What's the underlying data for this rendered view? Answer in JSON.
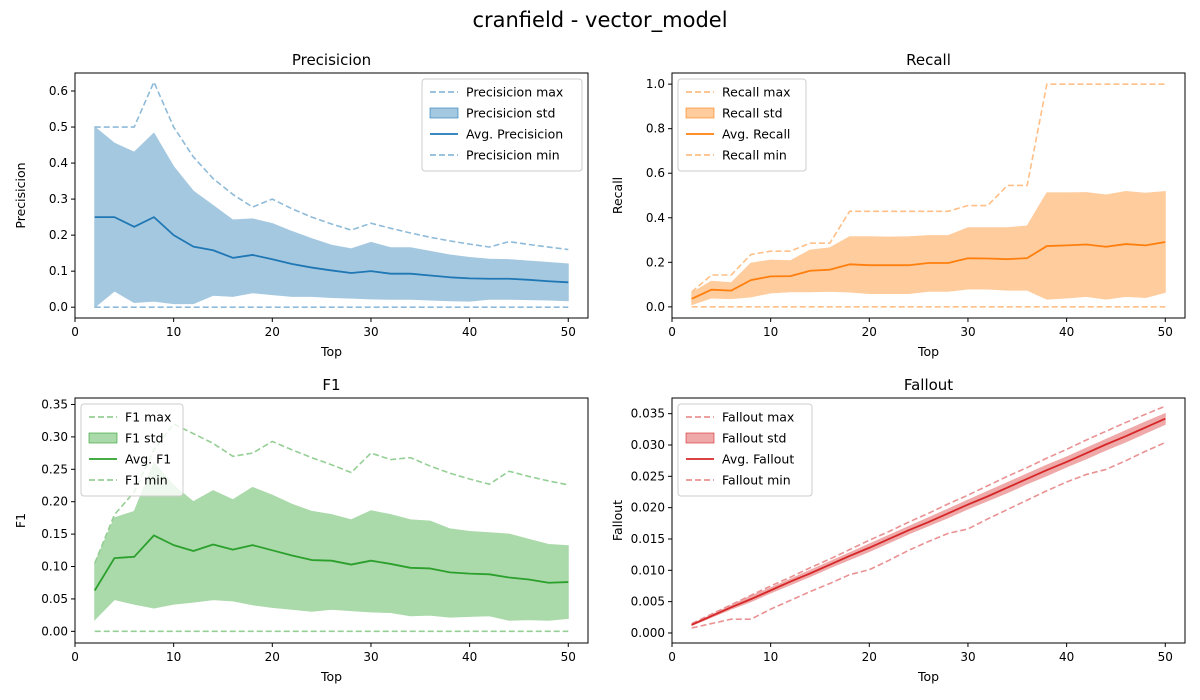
{
  "figure": {
    "suptitle": "cranfield - vector_model"
  },
  "colors": {
    "precision": "#1f77b4",
    "recall": "#ff7f0e",
    "f1": "#2ca02c",
    "fallout": "#d62728"
  },
  "chart_data": [
    {
      "type": "line",
      "title": "Precisicion",
      "xlabel": "Top",
      "ylabel": "Precisicion",
      "xlim": [
        0,
        52
      ],
      "ylim": [
        -0.03,
        0.65
      ],
      "xticks": [
        0,
        10,
        20,
        30,
        40,
        50
      ],
      "xtick_labels": [
        "0",
        "10",
        "20",
        "30",
        "40",
        "50"
      ],
      "yticks": [
        0.0,
        0.1,
        0.2,
        0.3,
        0.4,
        0.5,
        0.6
      ],
      "ytick_labels": [
        "0.0",
        "0.1",
        "0.2",
        "0.3",
        "0.4",
        "0.5",
        "0.6"
      ],
      "legend_position": "top-right",
      "legend": [
        "Precisicion max",
        "Precisicion std",
        "Avg. Precisicion",
        "Precisicion min"
      ],
      "color": "#1f77b4",
      "x": [
        2,
        4,
        6,
        8,
        10,
        12,
        14,
        16,
        18,
        20,
        22,
        24,
        26,
        28,
        30,
        32,
        34,
        36,
        38,
        40,
        42,
        44,
        46,
        48,
        50
      ],
      "max": [
        0.5,
        0.5,
        0.5,
        0.625,
        0.5,
        0.417,
        0.357,
        0.313,
        0.278,
        0.3,
        0.273,
        0.25,
        0.231,
        0.214,
        0.233,
        0.219,
        0.206,
        0.194,
        0.184,
        0.175,
        0.167,
        0.182,
        0.174,
        0.167,
        0.16
      ],
      "std_upper": [
        0.5,
        0.455,
        0.43,
        0.483,
        0.39,
        0.322,
        0.282,
        0.242,
        0.245,
        0.232,
        0.21,
        0.19,
        0.172,
        0.162,
        0.18,
        0.165,
        0.165,
        0.155,
        0.145,
        0.138,
        0.133,
        0.132,
        0.128,
        0.124,
        0.12
      ],
      "avg": [
        0.25,
        0.25,
        0.223,
        0.25,
        0.2,
        0.168,
        0.158,
        0.137,
        0.145,
        0.133,
        0.12,
        0.11,
        0.102,
        0.095,
        0.1,
        0.093,
        0.093,
        0.088,
        0.083,
        0.08,
        0.079,
        0.079,
        0.076,
        0.072,
        0.069
      ],
      "std_lower": [
        0.0,
        0.045,
        0.013,
        0.017,
        0.01,
        0.01,
        0.033,
        0.03,
        0.04,
        0.035,
        0.03,
        0.03,
        0.027,
        0.025,
        0.023,
        0.022,
        0.022,
        0.02,
        0.018,
        0.017,
        0.022,
        0.022,
        0.021,
        0.02,
        0.018
      ],
      "min": [
        0.0,
        0.0,
        0.0,
        0.0,
        0.0,
        0.0,
        0.0,
        0.0,
        0.0,
        0.0,
        0.0,
        0.0,
        0.0,
        0.0,
        0.0,
        0.0,
        0.0,
        0.0,
        0.0,
        0.0,
        0.0,
        0.0,
        0.0,
        0.0,
        0.0
      ]
    },
    {
      "type": "line",
      "title": "Recall",
      "xlabel": "Top",
      "ylabel": "Recall",
      "xlim": [
        0,
        52
      ],
      "ylim": [
        -0.05,
        1.05
      ],
      "xticks": [
        0,
        10,
        20,
        30,
        40,
        50
      ],
      "xtick_labels": [
        "0",
        "10",
        "20",
        "30",
        "40",
        "50"
      ],
      "yticks": [
        0.0,
        0.2,
        0.4,
        0.6,
        0.8,
        1.0
      ],
      "ytick_labels": [
        "0.0",
        "0.2",
        "0.4",
        "0.6",
        "0.8",
        "1.0"
      ],
      "legend_position": "top-left",
      "legend": [
        "Recall max",
        "Recall std",
        "Avg. Recall",
        "Recall min"
      ],
      "color": "#ff7f0e",
      "x": [
        2,
        4,
        6,
        8,
        10,
        12,
        14,
        16,
        18,
        20,
        22,
        24,
        26,
        28,
        30,
        32,
        34,
        36,
        38,
        40,
        42,
        44,
        46,
        48,
        50
      ],
      "max": [
        0.067,
        0.143,
        0.143,
        0.235,
        0.25,
        0.25,
        0.286,
        0.286,
        0.429,
        0.429,
        0.429,
        0.429,
        0.429,
        0.429,
        0.455,
        0.455,
        0.545,
        0.545,
        1.0,
        1.0,
        1.0,
        1.0,
        1.0,
        1.0,
        1.0
      ],
      "std_upper": [
        0.063,
        0.115,
        0.108,
        0.196,
        0.21,
        0.207,
        0.255,
        0.265,
        0.315,
        0.315,
        0.313,
        0.315,
        0.32,
        0.32,
        0.355,
        0.355,
        0.355,
        0.363,
        0.512,
        0.512,
        0.513,
        0.502,
        0.518,
        0.51,
        0.518
      ],
      "avg": [
        0.036,
        0.077,
        0.073,
        0.12,
        0.137,
        0.138,
        0.162,
        0.167,
        0.191,
        0.187,
        0.187,
        0.187,
        0.197,
        0.197,
        0.218,
        0.217,
        0.214,
        0.219,
        0.273,
        0.276,
        0.28,
        0.27,
        0.282,
        0.276,
        0.291
      ],
      "std_lower": [
        0.01,
        0.04,
        0.037,
        0.045,
        0.063,
        0.068,
        0.068,
        0.07,
        0.067,
        0.06,
        0.06,
        0.06,
        0.07,
        0.07,
        0.08,
        0.08,
        0.075,
        0.075,
        0.035,
        0.04,
        0.047,
        0.035,
        0.047,
        0.042,
        0.065
      ],
      "min": [
        0.0,
        0.0,
        0.0,
        0.0,
        0.0,
        0.0,
        0.0,
        0.0,
        0.0,
        0.0,
        0.0,
        0.0,
        0.0,
        0.0,
        0.0,
        0.0,
        0.0,
        0.0,
        0.0,
        0.0,
        0.0,
        0.0,
        0.0,
        0.0,
        0.0
      ]
    },
    {
      "type": "line",
      "title": "F1",
      "xlabel": "Top",
      "ylabel": "F1",
      "xlim": [
        0,
        52
      ],
      "ylim": [
        -0.018,
        0.36
      ],
      "xticks": [
        0,
        10,
        20,
        30,
        40,
        50
      ],
      "xtick_labels": [
        "0",
        "10",
        "20",
        "30",
        "40",
        "50"
      ],
      "yticks": [
        0.0,
        0.05,
        0.1,
        0.15,
        0.2,
        0.25,
        0.3,
        0.35
      ],
      "ytick_labels": [
        "0.00",
        "0.05",
        "0.10",
        "0.15",
        "0.20",
        "0.25",
        "0.30",
        "0.35"
      ],
      "legend_position": "top-left",
      "legend": [
        "F1 max",
        "F1 std",
        "Avg. F1",
        "F1 min"
      ],
      "color": "#2ca02c",
      "x": [
        2,
        4,
        6,
        8,
        10,
        12,
        14,
        16,
        18,
        20,
        22,
        24,
        26,
        28,
        30,
        32,
        34,
        36,
        38,
        40,
        42,
        44,
        46,
        48,
        50
      ],
      "max": [
        0.105,
        0.18,
        0.215,
        0.28,
        0.32,
        0.305,
        0.29,
        0.27,
        0.275,
        0.293,
        0.28,
        0.268,
        0.257,
        0.245,
        0.275,
        0.265,
        0.268,
        0.255,
        0.244,
        0.235,
        0.227,
        0.247,
        0.239,
        0.232,
        0.226
      ],
      "std_upper": [
        0.105,
        0.175,
        0.185,
        0.26,
        0.225,
        0.2,
        0.217,
        0.203,
        0.222,
        0.21,
        0.196,
        0.185,
        0.18,
        0.172,
        0.186,
        0.18,
        0.172,
        0.17,
        0.158,
        0.154,
        0.152,
        0.15,
        0.142,
        0.134,
        0.132
      ],
      "avg": [
        0.063,
        0.113,
        0.115,
        0.148,
        0.133,
        0.124,
        0.134,
        0.126,
        0.133,
        0.125,
        0.117,
        0.11,
        0.109,
        0.103,
        0.109,
        0.104,
        0.098,
        0.097,
        0.091,
        0.089,
        0.088,
        0.083,
        0.08,
        0.075,
        0.076
      ],
      "std_lower": [
        0.018,
        0.049,
        0.042,
        0.036,
        0.042,
        0.045,
        0.049,
        0.047,
        0.041,
        0.037,
        0.034,
        0.031,
        0.034,
        0.032,
        0.03,
        0.029,
        0.024,
        0.025,
        0.022,
        0.023,
        0.024,
        0.017,
        0.018,
        0.017,
        0.02
      ],
      "min": [
        0.0,
        0.0,
        0.0,
        0.0,
        0.0,
        0.0,
        0.0,
        0.0,
        0.0,
        0.0,
        0.0,
        0.0,
        0.0,
        0.0,
        0.0,
        0.0,
        0.0,
        0.0,
        0.0,
        0.0,
        0.0,
        0.0,
        0.0,
        0.0,
        0.0
      ]
    },
    {
      "type": "line",
      "title": "Fallout",
      "xlabel": "Top",
      "ylabel": "Fallout",
      "xlim": [
        0,
        52
      ],
      "ylim": [
        -0.0016,
        0.0375
      ],
      "xticks": [
        0,
        10,
        20,
        30,
        40,
        50
      ],
      "xtick_labels": [
        "0",
        "10",
        "20",
        "30",
        "40",
        "50"
      ],
      "yticks": [
        0.0,
        0.005,
        0.01,
        0.015,
        0.02,
        0.025,
        0.03,
        0.035
      ],
      "ytick_labels": [
        "0.000",
        "0.005",
        "0.010",
        "0.015",
        "0.020",
        "0.025",
        "0.030",
        "0.035"
      ],
      "legend_position": "top-left",
      "legend": [
        "Fallout max",
        "Fallout std",
        "Avg. Fallout",
        "Fallout min"
      ],
      "color": "#d62728",
      "x": [
        2,
        4,
        6,
        8,
        10,
        12,
        14,
        16,
        18,
        20,
        22,
        24,
        26,
        28,
        30,
        32,
        34,
        36,
        38,
        40,
        42,
        44,
        46,
        48,
        50
      ],
      "max": [
        0.0015,
        0.003,
        0.0045,
        0.006,
        0.0075,
        0.0089,
        0.0104,
        0.0118,
        0.0133,
        0.0148,
        0.0162,
        0.0177,
        0.0191,
        0.0206,
        0.022,
        0.0235,
        0.025,
        0.0264,
        0.0279,
        0.0293,
        0.0308,
        0.0322,
        0.0336,
        0.0349,
        0.0362
      ],
      "std_upper": [
        0.0014,
        0.0029,
        0.0044,
        0.0059,
        0.0072,
        0.0086,
        0.01,
        0.0114,
        0.0128,
        0.0142,
        0.0156,
        0.017,
        0.0184,
        0.0198,
        0.0212,
        0.0226,
        0.024,
        0.0254,
        0.0268,
        0.0281,
        0.0295,
        0.0309,
        0.0323,
        0.0337,
        0.035
      ],
      "avg": [
        0.0013,
        0.0027,
        0.0041,
        0.0054,
        0.0068,
        0.0082,
        0.0095,
        0.0109,
        0.0123,
        0.0136,
        0.015,
        0.0164,
        0.0177,
        0.0191,
        0.0205,
        0.0218,
        0.0232,
        0.0246,
        0.026,
        0.0273,
        0.0287,
        0.0301,
        0.0314,
        0.0328,
        0.0342
      ],
      "std_lower": [
        0.0012,
        0.0025,
        0.0038,
        0.005,
        0.0064,
        0.0077,
        0.009,
        0.0104,
        0.0117,
        0.013,
        0.0144,
        0.0158,
        0.0171,
        0.0184,
        0.0198,
        0.0211,
        0.0224,
        0.0238,
        0.0251,
        0.0265,
        0.0278,
        0.0292,
        0.0305,
        0.0319,
        0.0333
      ],
      "min": [
        0.0008,
        0.0015,
        0.0022,
        0.0022,
        0.0038,
        0.0052,
        0.0066,
        0.0079,
        0.0093,
        0.0101,
        0.0116,
        0.0132,
        0.0146,
        0.0159,
        0.0166,
        0.0182,
        0.0197,
        0.0212,
        0.0227,
        0.0241,
        0.0253,
        0.0261,
        0.0275,
        0.029,
        0.0304
      ]
    }
  ]
}
